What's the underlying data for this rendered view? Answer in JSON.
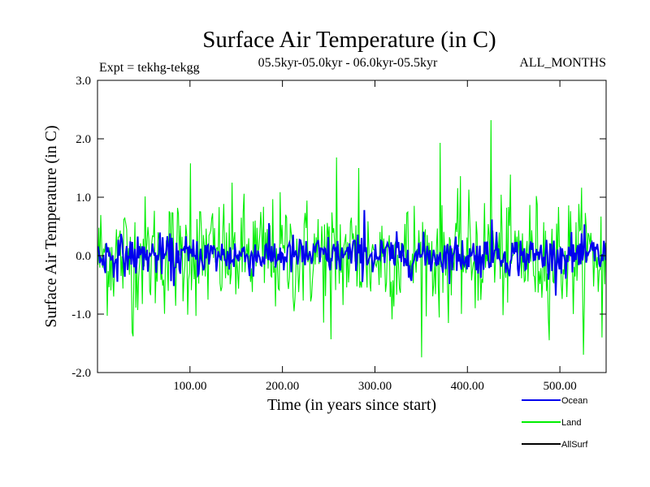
{
  "chart_data": {
    "type": "line",
    "title": "Surface Air Temperature (in C)",
    "subtitle_left": "Expt = tekhg-tekgg",
    "subtitle_center": "05.5kyr-05.0kyr - 06.0kyr-05.5kyr",
    "subtitle_right": "ALL_MONTHS",
    "xlabel": "Time (in years since start)",
    "ylabel": "Surface Air Temperature (in C)",
    "xlim": [
      0,
      550
    ],
    "ylim": [
      -2.0,
      3.0
    ],
    "xticks": [
      100,
      200,
      300,
      400,
      500
    ],
    "xtick_labels": [
      "100.00",
      "200.00",
      "300.00",
      "400.00",
      "500.00"
    ],
    "yticks": [
      -2.0,
      -1.0,
      0.0,
      1.0,
      2.0,
      3.0
    ],
    "ytick_labels": [
      "-2.0",
      "-1.0",
      "0.0",
      "1.0",
      "2.0",
      "3.0"
    ],
    "series": [
      {
        "name": "Land",
        "color": "#00ee00",
        "n_points": 550,
        "noise_sd": 0.5,
        "spikes": [
          [
            100,
            1.58
          ],
          [
            258,
            1.68
          ],
          [
            282,
            1.5
          ],
          [
            370,
            1.93
          ],
          [
            425,
            2.32
          ],
          [
            252,
            -1.43
          ],
          [
            545,
            -1.4
          ],
          [
            38,
            -1.38
          ]
        ]
      },
      {
        "name": "Ocean",
        "color": "#0000ee",
        "n_points": 550,
        "noise_sd": 0.17,
        "spikes": [
          [
            288,
            0.78
          ],
          [
            426,
            0.62
          ],
          [
            82,
            -0.52
          ]
        ]
      },
      {
        "name": "AllSurf",
        "color": "#000000",
        "n_points": 0
      }
    ],
    "legend": [
      {
        "label": "Ocean",
        "color": "#0000ee"
      },
      {
        "label": "Land",
        "color": "#00ee00"
      },
      {
        "label": "AllSurf",
        "color": "#000000"
      }
    ]
  }
}
